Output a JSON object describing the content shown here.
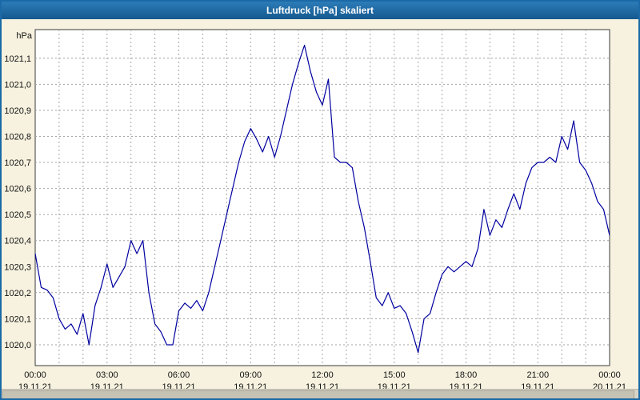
{
  "window": {
    "title": "Luftdruck [hPa] skaliert"
  },
  "colors": {
    "titlebar_bg": "#1b6aa7",
    "titlebar_text": "#ffffff",
    "window_bg": "#f7f2df",
    "plot_bg": "#ffffff",
    "grid": "#a3a3a3",
    "axis": "#3a3a3a",
    "line": "#0000a0",
    "tick_text": "#111111"
  },
  "chart_data": {
    "type": "line",
    "title": "Luftdruck [hPa] skaliert",
    "unit_label": "hPa",
    "grid": "dashed; vertical every hour, horizontal every 0.1 hPa",
    "legend_position": "none",
    "ylim": [
      1019.92,
      1021.21
    ],
    "xlim_hours": [
      0,
      24
    ],
    "y_ticks": [
      {
        "value": 1020.0,
        "label": "1020,0"
      },
      {
        "value": 1020.1,
        "label": "1020,1"
      },
      {
        "value": 1020.2,
        "label": "1020,2"
      },
      {
        "value": 1020.3,
        "label": "1020,3"
      },
      {
        "value": 1020.4,
        "label": "1020,4"
      },
      {
        "value": 1020.5,
        "label": "1020,5"
      },
      {
        "value": 1020.6,
        "label": "1020,6"
      },
      {
        "value": 1020.7,
        "label": "1020,7"
      },
      {
        "value": 1020.8,
        "label": "1020,8"
      },
      {
        "value": 1020.9,
        "label": "1020,9"
      },
      {
        "value": 1021.0,
        "label": "1021,0"
      },
      {
        "value": 1021.1,
        "label": "1021,1"
      }
    ],
    "x_ticks": [
      {
        "hour": 0,
        "time": "00:00",
        "date": "19.11.21"
      },
      {
        "hour": 3,
        "time": "03:00",
        "date": "19.11.21"
      },
      {
        "hour": 6,
        "time": "06:00",
        "date": "19.11.21"
      },
      {
        "hour": 9,
        "time": "09:00",
        "date": "19.11.21"
      },
      {
        "hour": 12,
        "time": "12:00",
        "date": "19.11.21"
      },
      {
        "hour": 15,
        "time": "15:00",
        "date": "19.11.21"
      },
      {
        "hour": 18,
        "time": "18:00",
        "date": "19.11.21"
      },
      {
        "hour": 21,
        "time": "21:00",
        "date": "19.11.21"
      },
      {
        "hour": 24,
        "time": "00:00",
        "date": "20.11.21"
      }
    ],
    "series": [
      {
        "name": "Luftdruck",
        "x_start_hour": 0,
        "x_step_hours": 0.25,
        "values": [
          1020.35,
          1020.22,
          1020.21,
          1020.18,
          1020.1,
          1020.06,
          1020.08,
          1020.04,
          1020.12,
          1020.0,
          1020.15,
          1020.22,
          1020.31,
          1020.22,
          1020.26,
          1020.3,
          1020.4,
          1020.35,
          1020.4,
          1020.2,
          1020.08,
          1020.05,
          1020.0,
          1020.0,
          1020.13,
          1020.16,
          1020.14,
          1020.17,
          1020.13,
          1020.2,
          1020.3,
          1020.4,
          1020.5,
          1020.6,
          1020.7,
          1020.78,
          1020.83,
          1020.79,
          1020.74,
          1020.8,
          1020.72,
          1020.8,
          1020.9,
          1021.0,
          1021.08,
          1021.15,
          1021.05,
          1020.97,
          1020.92,
          1021.02,
          1020.72,
          1020.7,
          1020.7,
          1020.68,
          1020.55,
          1020.45,
          1020.32,
          1020.18,
          1020.15,
          1020.2,
          1020.14,
          1020.15,
          1020.12,
          1020.05,
          1019.97,
          1020.1,
          1020.12,
          1020.2,
          1020.27,
          1020.3,
          1020.28,
          1020.3,
          1020.32,
          1020.3,
          1020.37,
          1020.52,
          1020.42,
          1020.48,
          1020.45,
          1020.52,
          1020.58,
          1020.52,
          1020.62,
          1020.68,
          1020.7,
          1020.7,
          1020.72,
          1020.7,
          1020.8,
          1020.75,
          1020.86,
          1020.7,
          1020.67,
          1020.62,
          1020.55,
          1020.52,
          1020.42
        ]
      }
    ]
  }
}
